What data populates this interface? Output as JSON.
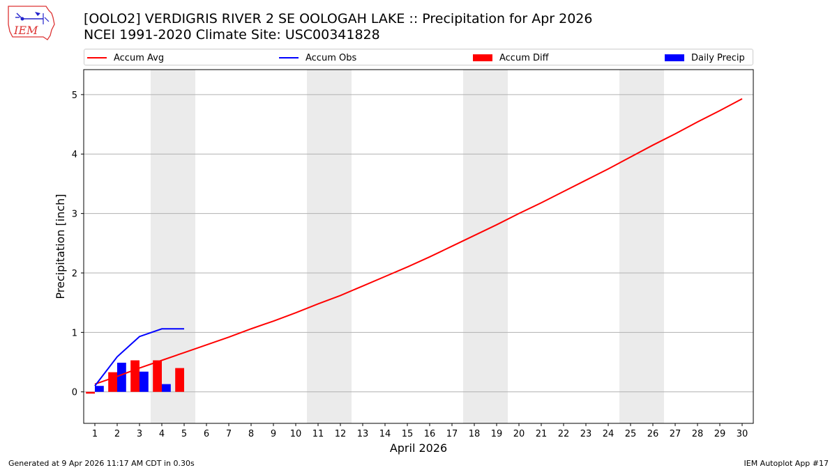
{
  "header": {
    "title_line1": "[OOLO2] VERDIGRIS RIVER 2 SE OOLOGAH LAKE :: Precipitation for Apr 2026",
    "title_line2": "NCEI 1991-2020 Climate Site: USC00341828"
  },
  "logo": {
    "text": "IEM"
  },
  "footer": {
    "left": "Generated at 9 Apr 2026 11:17 AM CDT in 0.30s",
    "right": "IEM Autoplot App #17"
  },
  "colors": {
    "avg": "#ff0000",
    "obs": "#0000ff",
    "diff": "#ff0000",
    "daily": "#0000ff",
    "weekend_band": "#ebebeb",
    "grid": "#b0b0b0"
  },
  "chart_data": {
    "type": "line",
    "xlabel": "April 2026",
    "ylabel": "Precipitation [inch]",
    "xlim": [
      0.5,
      30.5
    ],
    "ylim": [
      -0.53,
      5.42
    ],
    "yticks": [
      0,
      1,
      2,
      3,
      4,
      5
    ],
    "xticks": [
      1,
      2,
      3,
      4,
      5,
      6,
      7,
      8,
      9,
      10,
      11,
      12,
      13,
      14,
      15,
      16,
      17,
      18,
      19,
      20,
      21,
      22,
      23,
      24,
      25,
      26,
      27,
      28,
      29,
      30
    ],
    "grid": "horizontal",
    "legend_position": "top",
    "weekend_bands": [
      [
        3.5,
        5.5
      ],
      [
        10.5,
        12.5
      ],
      [
        17.5,
        19.5
      ],
      [
        24.5,
        26.5
      ]
    ],
    "legend": [
      "Accum Avg",
      "Accum Obs",
      "Accum Diff",
      "Daily Precip"
    ],
    "series": [
      {
        "name": "Accum Avg",
        "kind": "line",
        "x": [
          1,
          2,
          3,
          4,
          5,
          6,
          7,
          8,
          9,
          10,
          11,
          12,
          13,
          14,
          15,
          16,
          17,
          18,
          19,
          20,
          21,
          22,
          23,
          24,
          25,
          26,
          27,
          28,
          29,
          30
        ],
        "values": [
          0.13,
          0.26,
          0.4,
          0.53,
          0.66,
          0.79,
          0.92,
          1.06,
          1.19,
          1.33,
          1.48,
          1.62,
          1.78,
          1.94,
          2.1,
          2.27,
          2.45,
          2.63,
          2.81,
          3.0,
          3.18,
          3.37,
          3.56,
          3.75,
          3.95,
          4.15,
          4.34,
          4.54,
          4.73,
          4.93
        ]
      },
      {
        "name": "Accum Obs",
        "kind": "line",
        "x": [
          1,
          2,
          3,
          4,
          5
        ],
        "values": [
          0.1,
          0.59,
          0.93,
          1.06,
          1.06
        ]
      },
      {
        "name": "Accum Diff",
        "kind": "bar",
        "x": [
          1,
          2,
          3,
          4,
          5
        ],
        "values": [
          -0.03,
          0.33,
          0.53,
          0.53,
          0.4
        ]
      },
      {
        "name": "Daily Precip",
        "kind": "bar",
        "x": [
          1,
          2,
          3,
          4,
          5
        ],
        "values": [
          0.1,
          0.49,
          0.34,
          0.13,
          0.0
        ]
      }
    ]
  }
}
